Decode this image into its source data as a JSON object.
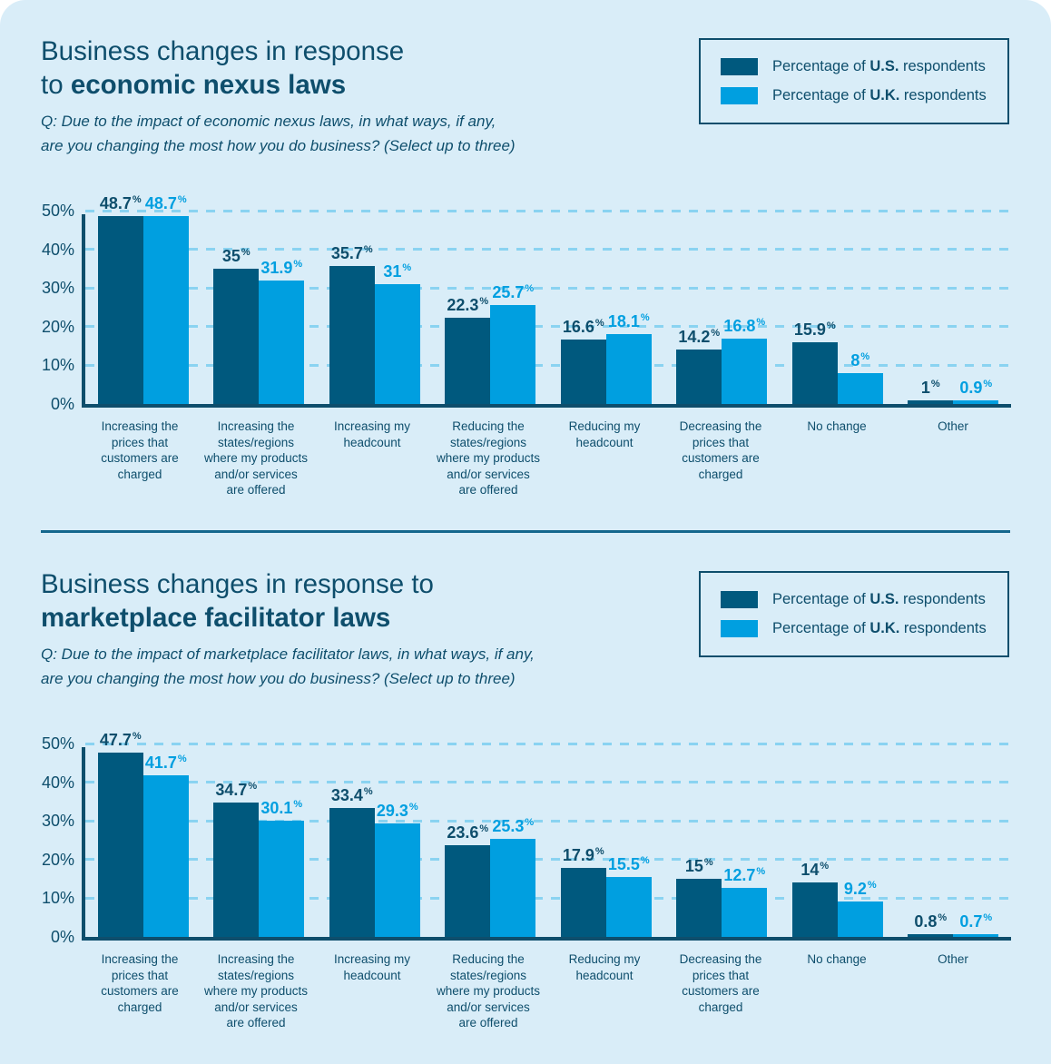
{
  "colors": {
    "page_bg": "#FFFFFF",
    "card_bg": "#D9EDF8",
    "us_bar": "#00597E",
    "uk_bar": "#009FE0",
    "text": "#0E4E6C",
    "grid_dash": "#8AD3F1",
    "divider": "#14678D",
    "legend_border": "#0E4E6C"
  },
  "legend": {
    "us_prefix": "Percentage of ",
    "us_bold": "U.S.",
    "us_suffix": " respondents",
    "uk_prefix": "Percentage of ",
    "uk_bold": "U.K.",
    "uk_suffix": " respondents"
  },
  "chart_data": [
    {
      "type": "bar",
      "title": {
        "line1": "Business changes in response",
        "line2_prefix": "to ",
        "line2_bold": "economic nexus laws",
        "full": "Business changes in response to economic nexus laws"
      },
      "question": "Q: Due to the impact of economic nexus laws, in what ways, if any,\nare you changing the most how you do business? (Select up to three)",
      "categories": [
        "Increasing the\nprices that\ncustomers are\ncharged",
        "Increasing the\nstates/regions\nwhere my products\nand/or services\nare offered",
        "Increasing my\nheadcount",
        "Reducing the\nstates/regions\nwhere my products\nand/or services\nare offered",
        "Reducing my\nheadcount",
        "Decreasing the\nprices that\ncustomers are\ncharged",
        "No change",
        "Other"
      ],
      "series": [
        {
          "name": "Percentage of U.S. respondents",
          "color_key": "us",
          "values": [
            48.7,
            35,
            35.7,
            22.3,
            16.6,
            14.2,
            15.9,
            1
          ],
          "labels": [
            "48.7",
            "35",
            "35.7",
            "22.3",
            "16.6",
            "14.2",
            "15.9",
            "1"
          ]
        },
        {
          "name": "Percentage of U.K. respondents",
          "color_key": "uk",
          "values": [
            48.7,
            31.9,
            31,
            25.7,
            18.1,
            16.8,
            8,
            0.9
          ],
          "labels": [
            "48.7",
            "31.9",
            "31",
            "25.7",
            "18.1",
            "16.8",
            "8",
            "0.9"
          ]
        }
      ],
      "xlabel": "",
      "ylabel": "",
      "ylim": [
        0,
        50
      ],
      "yticks": [
        0,
        10,
        20,
        30,
        40,
        50
      ],
      "ytick_suffix": "%",
      "grid": "dashed-horizontal",
      "legend_position": "top-right"
    },
    {
      "type": "bar",
      "title": {
        "line1": "Business changes in response to",
        "line2_prefix": "",
        "line2_bold": "marketplace facilitator laws",
        "full": "Business changes in response to marketplace facilitator laws"
      },
      "question": "Q: Due to the impact of marketplace facilitator laws, in what ways, if any,\nare you changing the most how you do business? (Select up to three)",
      "categories": [
        "Increasing the\nprices that\ncustomers are\ncharged",
        "Increasing the\nstates/regions\nwhere my products\nand/or services\nare offered",
        "Increasing my\nheadcount",
        "Reducing the\nstates/regions\nwhere my products\nand/or services\nare offered",
        "Reducing my\nheadcount",
        "Decreasing the\nprices that\ncustomers are\ncharged",
        "No change",
        "Other"
      ],
      "series": [
        {
          "name": "Percentage of U.S. respondents",
          "color_key": "us",
          "values": [
            47.7,
            34.7,
            33.4,
            23.6,
            17.9,
            15,
            14,
            0.8
          ],
          "labels": [
            "47.7",
            "34.7",
            "33.4",
            "23.6",
            "17.9",
            "15",
            "14",
            "0.8"
          ]
        },
        {
          "name": "Percentage of U.K. respondents",
          "color_key": "uk",
          "values": [
            41.7,
            30.1,
            29.3,
            25.3,
            15.5,
            12.7,
            9.2,
            0.7
          ],
          "labels": [
            "41.7",
            "30.1",
            "29.3",
            "25.3",
            "15.5",
            "12.7",
            "9.2",
            "0.7"
          ]
        }
      ],
      "xlabel": "",
      "ylabel": "",
      "ylim": [
        0,
        50
      ],
      "yticks": [
        0,
        10,
        20,
        30,
        40,
        50
      ],
      "ytick_suffix": "%",
      "grid": "dashed-horizontal",
      "legend_position": "top-right"
    }
  ]
}
